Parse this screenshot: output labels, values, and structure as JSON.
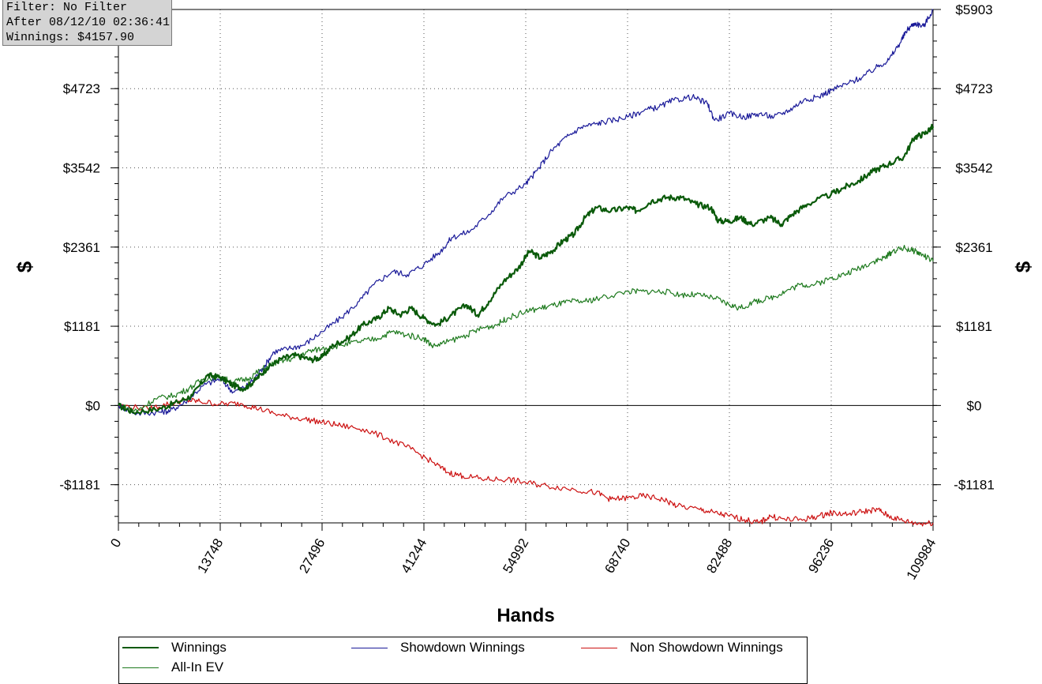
{
  "info": {
    "filter": "Filter: No Filter",
    "after": "After 08/12/10 02:36:41",
    "winnings": "Winnings: $4157.90"
  },
  "chart_data": {
    "type": "line",
    "xlabel": "Hands",
    "ylabel": "$",
    "xlim": [
      0,
      109984
    ],
    "ylim": [
      -1750,
      5903
    ],
    "x_ticks": [
      0,
      13748,
      27496,
      41244,
      54992,
      68740,
      82488,
      96236,
      109984
    ],
    "x_tick_labels": [
      "0",
      "13748",
      "27496",
      "41244",
      "54992",
      "68740",
      "82488",
      "96236",
      "109984"
    ],
    "y_ticks": [
      -1181,
      0,
      1181,
      2361,
      3542,
      4723,
      5903
    ],
    "y_tick_labels": [
      "-$1181",
      "$0",
      "$1181",
      "$2361",
      "$3542",
      "$4723",
      "$5903"
    ],
    "grid": true,
    "legend_position": "bottom",
    "series": [
      {
        "name": "Winnings",
        "color": "#0a5a0a",
        "width": 2.2,
        "points": [
          [
            0,
            0
          ],
          [
            2000,
            -100
          ],
          [
            5500,
            -50
          ],
          [
            8000,
            50
          ],
          [
            10000,
            150
          ],
          [
            12000,
            450
          ],
          [
            13748,
            420
          ],
          [
            15500,
            300
          ],
          [
            17000,
            250
          ],
          [
            18500,
            380
          ],
          [
            20000,
            550
          ],
          [
            22000,
            700
          ],
          [
            24000,
            750
          ],
          [
            26000,
            680
          ],
          [
            27496,
            720
          ],
          [
            29000,
            900
          ],
          [
            31000,
            1000
          ],
          [
            33000,
            1200
          ],
          [
            35000,
            1300
          ],
          [
            36500,
            1450
          ],
          [
            38000,
            1350
          ],
          [
            39500,
            1450
          ],
          [
            41244,
            1300
          ],
          [
            43000,
            1200
          ],
          [
            45000,
            1350
          ],
          [
            47000,
            1500
          ],
          [
            48500,
            1350
          ],
          [
            50000,
            1550
          ],
          [
            52000,
            1850
          ],
          [
            54000,
            2050
          ],
          [
            55500,
            2300
          ],
          [
            57000,
            2200
          ],
          [
            58500,
            2300
          ],
          [
            60000,
            2450
          ],
          [
            61500,
            2550
          ],
          [
            63000,
            2800
          ],
          [
            64500,
            2950
          ],
          [
            66500,
            2900
          ],
          [
            68740,
            2950
          ],
          [
            70000,
            2900
          ],
          [
            72000,
            3050
          ],
          [
            74000,
            3100
          ],
          [
            76000,
            3100
          ],
          [
            78000,
            3000
          ],
          [
            80000,
            2950
          ],
          [
            81000,
            2750
          ],
          [
            82488,
            2750
          ],
          [
            84000,
            2800
          ],
          [
            85500,
            2700
          ],
          [
            88000,
            2800
          ],
          [
            89500,
            2700
          ],
          [
            91000,
            2850
          ],
          [
            93000,
            3000
          ],
          [
            96236,
            3150
          ],
          [
            98000,
            3250
          ],
          [
            100000,
            3350
          ],
          [
            102000,
            3500
          ],
          [
            104000,
            3600
          ],
          [
            106000,
            3700
          ],
          [
            107500,
            4000
          ],
          [
            108800,
            4050
          ],
          [
            109984,
            4158
          ]
        ]
      },
      {
        "name": "Showdown Winnings",
        "color": "#1a1a99",
        "width": 1.2,
        "points": [
          [
            0,
            0
          ],
          [
            2500,
            -120
          ],
          [
            5500,
            -100
          ],
          [
            7000,
            -80
          ],
          [
            9000,
            50
          ],
          [
            11500,
            300
          ],
          [
            13748,
            400
          ],
          [
            15500,
            200
          ],
          [
            17500,
            300
          ],
          [
            19500,
            550
          ],
          [
            21000,
            800
          ],
          [
            23000,
            850
          ],
          [
            25000,
            900
          ],
          [
            27496,
            1100
          ],
          [
            30000,
            1300
          ],
          [
            32500,
            1550
          ],
          [
            34500,
            1800
          ],
          [
            37000,
            2000
          ],
          [
            39000,
            1950
          ],
          [
            41244,
            2100
          ],
          [
            43500,
            2300
          ],
          [
            45000,
            2500
          ],
          [
            47500,
            2600
          ],
          [
            50000,
            2850
          ],
          [
            52000,
            3100
          ],
          [
            54992,
            3300
          ],
          [
            56500,
            3500
          ],
          [
            58500,
            3800
          ],
          [
            60500,
            4000
          ],
          [
            62500,
            4150
          ],
          [
            64500,
            4200
          ],
          [
            66500,
            4250
          ],
          [
            68740,
            4300
          ],
          [
            71000,
            4400
          ],
          [
            73000,
            4450
          ],
          [
            75000,
            4550
          ],
          [
            77500,
            4600
          ],
          [
            79500,
            4500
          ],
          [
            80500,
            4250
          ],
          [
            82488,
            4350
          ],
          [
            84500,
            4300
          ],
          [
            86500,
            4350
          ],
          [
            88500,
            4300
          ],
          [
            90500,
            4400
          ],
          [
            92500,
            4550
          ],
          [
            94500,
            4600
          ],
          [
            96236,
            4700
          ],
          [
            98500,
            4800
          ],
          [
            100500,
            4900
          ],
          [
            102500,
            5050
          ],
          [
            104000,
            5150
          ],
          [
            105500,
            5400
          ],
          [
            106500,
            5600
          ],
          [
            107500,
            5700
          ],
          [
            108700,
            5650
          ],
          [
            109984,
            5903
          ]
        ]
      },
      {
        "name": "Non Showdown Winnings",
        "color": "#cc1111",
        "width": 1.2,
        "points": [
          [
            0,
            0
          ],
          [
            4000,
            -50
          ],
          [
            7000,
            30
          ],
          [
            9000,
            80
          ],
          [
            11000,
            60
          ],
          [
            13748,
            20
          ],
          [
            16500,
            30
          ],
          [
            19000,
            -50
          ],
          [
            22000,
            -150
          ],
          [
            25000,
            -200
          ],
          [
            27496,
            -250
          ],
          [
            30000,
            -300
          ],
          [
            33000,
            -350
          ],
          [
            36500,
            -500
          ],
          [
            39500,
            -650
          ],
          [
            42500,
            -850
          ],
          [
            44500,
            -1000
          ],
          [
            46500,
            -1050
          ],
          [
            49500,
            -1100
          ],
          [
            52500,
            -1100
          ],
          [
            54992,
            -1150
          ],
          [
            58000,
            -1200
          ],
          [
            61500,
            -1250
          ],
          [
            64500,
            -1300
          ],
          [
            66500,
            -1400
          ],
          [
            68740,
            -1380
          ],
          [
            71000,
            -1350
          ],
          [
            73500,
            -1400
          ],
          [
            75500,
            -1500
          ],
          [
            78500,
            -1550
          ],
          [
            80500,
            -1600
          ],
          [
            82488,
            -1650
          ],
          [
            84500,
            -1700
          ],
          [
            86500,
            -1750
          ],
          [
            88000,
            -1650
          ],
          [
            90000,
            -1700
          ],
          [
            92500,
            -1700
          ],
          [
            94500,
            -1650
          ],
          [
            96236,
            -1600
          ],
          [
            98500,
            -1620
          ],
          [
            100500,
            -1580
          ],
          [
            102500,
            -1550
          ],
          [
            104000,
            -1650
          ],
          [
            106000,
            -1720
          ],
          [
            108000,
            -1760
          ],
          [
            109984,
            -1750
          ]
        ]
      },
      {
        "name": "All-In EV",
        "color": "#1e7a1e",
        "width": 1.2,
        "points": [
          [
            0,
            0
          ],
          [
            2500,
            -80
          ],
          [
            5000,
            100
          ],
          [
            7500,
            150
          ],
          [
            9500,
            250
          ],
          [
            11500,
            400
          ],
          [
            13748,
            420
          ],
          [
            15500,
            350
          ],
          [
            17500,
            400
          ],
          [
            19500,
            550
          ],
          [
            21500,
            650
          ],
          [
            23500,
            700
          ],
          [
            25500,
            800
          ],
          [
            27496,
            850
          ],
          [
            30000,
            900
          ],
          [
            32500,
            950
          ],
          [
            35000,
            1000
          ],
          [
            37000,
            1100
          ],
          [
            39000,
            1050
          ],
          [
            41244,
            1000
          ],
          [
            42500,
            880
          ],
          [
            44500,
            950
          ],
          [
            47000,
            1050
          ],
          [
            49000,
            1150
          ],
          [
            51000,
            1200
          ],
          [
            52500,
            1300
          ],
          [
            54992,
            1400
          ],
          [
            57000,
            1450
          ],
          [
            59000,
            1500
          ],
          [
            61000,
            1550
          ],
          [
            63000,
            1550
          ],
          [
            65000,
            1600
          ],
          [
            68740,
            1700
          ],
          [
            71000,
            1700
          ],
          [
            73500,
            1700
          ],
          [
            76000,
            1650
          ],
          [
            78000,
            1650
          ],
          [
            80500,
            1600
          ],
          [
            82488,
            1500
          ],
          [
            84000,
            1450
          ],
          [
            86000,
            1550
          ],
          [
            88000,
            1600
          ],
          [
            90000,
            1700
          ],
          [
            92000,
            1800
          ],
          [
            94000,
            1800
          ],
          [
            96236,
            1900
          ],
          [
            98000,
            1950
          ],
          [
            100000,
            2050
          ],
          [
            102000,
            2150
          ],
          [
            103500,
            2200
          ],
          [
            104500,
            2300
          ],
          [
            106000,
            2350
          ],
          [
            107500,
            2300
          ],
          [
            108500,
            2250
          ],
          [
            109984,
            2150
          ]
        ]
      }
    ]
  }
}
